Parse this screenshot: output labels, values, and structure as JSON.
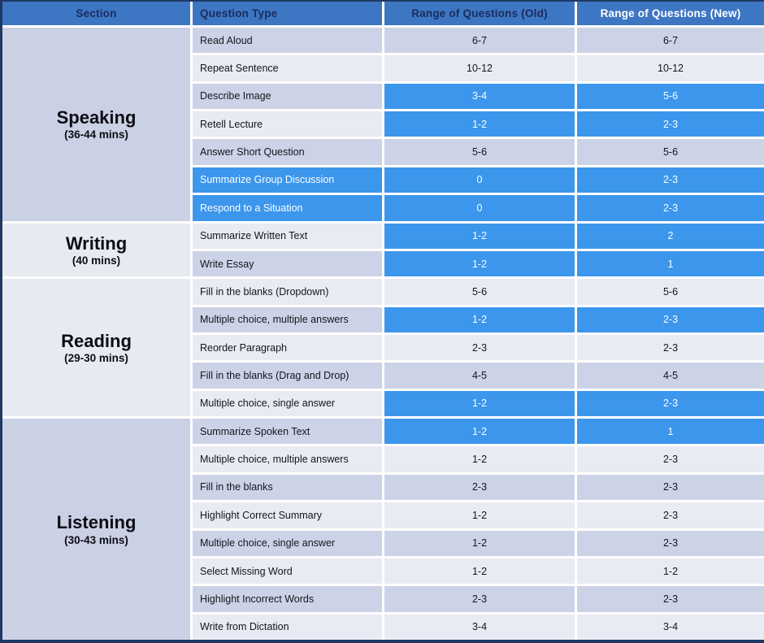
{
  "table": {
    "columns": [
      "Section",
      "Question Type",
      "Range of Questions (Old)",
      "Range of Questions (New)"
    ],
    "colors": {
      "header_bg": "#3D76C2",
      "header_text_dark": "#1B2C5E",
      "header_text_light": "#FFFFFF",
      "highlight_blue": "#3B96EC",
      "row_dark": "#CDD3E6",
      "row_light": "#E9EBF4",
      "section_dark": "#CBD1E4",
      "section_light": "#E8EAF2",
      "outer_border": "#1F3864",
      "body_text": "#14141C"
    },
    "sections": [
      {
        "name": "Speaking",
        "duration": "(36-44 mins)",
        "shade": "dark",
        "rows": [
          {
            "type": "Read Aloud",
            "old": "6-7",
            "new": "6-7",
            "shade": "dark",
            "highlight": "none"
          },
          {
            "type": "Repeat Sentence",
            "old": "10-12",
            "new": "10-12",
            "shade": "light",
            "highlight": "none"
          },
          {
            "type": "Describe Image",
            "old": "3-4",
            "new": "5-6",
            "shade": "dark",
            "highlight": "values"
          },
          {
            "type": "Retell Lecture",
            "old": "1-2",
            "new": "2-3",
            "shade": "light",
            "highlight": "values"
          },
          {
            "type": "Answer Short Question",
            "old": "5-6",
            "new": "5-6",
            "shade": "dark",
            "highlight": "none"
          },
          {
            "type": "Summarize Group Discussion",
            "old": "0",
            "new": "2-3",
            "shade": "dark",
            "highlight": "full"
          },
          {
            "type": "Respond to a Situation",
            "old": "0",
            "new": "2-3",
            "shade": "dark",
            "highlight": "full"
          }
        ]
      },
      {
        "name": "Writing",
        "duration": "(40 mins)",
        "shade": "light",
        "rows": [
          {
            "type": "Summarize Written Text",
            "old": "1-2",
            "new": "2",
            "shade": "light",
            "highlight": "values"
          },
          {
            "type": "Write Essay",
            "old": "1-2",
            "new": "1",
            "shade": "dark",
            "highlight": "values"
          }
        ]
      },
      {
        "name": "Reading",
        "duration": "(29-30 mins)",
        "shade": "light",
        "rows": [
          {
            "type": "Fill in the blanks (Dropdown)",
            "old": "5-6",
            "new": "5-6",
            "shade": "light",
            "highlight": "none"
          },
          {
            "type": "Multiple choice, multiple answers",
            "old": "1-2",
            "new": "2-3",
            "shade": "dark",
            "highlight": "values"
          },
          {
            "type": "Reorder Paragraph",
            "old": "2-3",
            "new": "2-3",
            "shade": "light",
            "highlight": "none"
          },
          {
            "type": "Fill in the blanks (Drag and Drop)",
            "old": "4-5",
            "new": "4-5",
            "shade": "dark",
            "highlight": "none"
          },
          {
            "type": "Multiple choice, single answer",
            "old": "1-2",
            "new": "2-3",
            "shade": "light",
            "highlight": "values"
          }
        ]
      },
      {
        "name": "Listening",
        "duration": "(30-43 mins)",
        "shade": "dark",
        "rows": [
          {
            "type": "Summarize Spoken Text",
            "old": "1-2",
            "new": "1",
            "shade": "dark",
            "highlight": "values"
          },
          {
            "type": "Multiple choice, multiple answers",
            "old": "1-2",
            "new": "2-3",
            "shade": "light",
            "highlight": "none"
          },
          {
            "type": "Fill in the blanks",
            "old": "2-3",
            "new": "2-3",
            "shade": "dark",
            "highlight": "none"
          },
          {
            "type": "Highlight Correct Summary",
            "old": "1-2",
            "new": "2-3",
            "shade": "light",
            "highlight": "none"
          },
          {
            "type": "Multiple choice, single answer",
            "old": "1-2",
            "new": "2-3",
            "shade": "dark",
            "highlight": "none"
          },
          {
            "type": "Select Missing Word",
            "old": "1-2",
            "new": "1-2",
            "shade": "light",
            "highlight": "none"
          },
          {
            "type": "Highlight Incorrect Words",
            "old": "2-3",
            "new": "2-3",
            "shade": "dark",
            "highlight": "none"
          },
          {
            "type": "Write from Dictation",
            "old": "3-4",
            "new": "3-4",
            "shade": "light",
            "highlight": "none"
          }
        ]
      }
    ]
  },
  "chart_data": {
    "type": "table",
    "title": "",
    "columns": [
      "Section",
      "Question Type",
      "Range of Questions (Old)",
      "Range of Questions (New)"
    ],
    "rows": [
      [
        "Speaking (36-44 mins)",
        "Read Aloud",
        "6-7",
        "6-7"
      ],
      [
        "Speaking (36-44 mins)",
        "Repeat Sentence",
        "10-12",
        "10-12"
      ],
      [
        "Speaking (36-44 mins)",
        "Describe Image",
        "3-4",
        "5-6"
      ],
      [
        "Speaking (36-44 mins)",
        "Retell Lecture",
        "1-2",
        "2-3"
      ],
      [
        "Speaking (36-44 mins)",
        "Answer Short Question",
        "5-6",
        "5-6"
      ],
      [
        "Speaking (36-44 mins)",
        "Summarize Group Discussion",
        "0",
        "2-3"
      ],
      [
        "Speaking (36-44 mins)",
        "Respond to a Situation",
        "0",
        "2-3"
      ],
      [
        "Writing (40 mins)",
        "Summarize Written Text",
        "1-2",
        "2"
      ],
      [
        "Writing (40 mins)",
        "Write Essay",
        "1-2",
        "1"
      ],
      [
        "Reading (29-30 mins)",
        "Fill in the blanks (Dropdown)",
        "5-6",
        "5-6"
      ],
      [
        "Reading (29-30 mins)",
        "Multiple choice, multiple answers",
        "1-2",
        "2-3"
      ],
      [
        "Reading (29-30 mins)",
        "Reorder Paragraph",
        "2-3",
        "2-3"
      ],
      [
        "Reading (29-30 mins)",
        "Fill in the blanks (Drag and Drop)",
        "4-5",
        "4-5"
      ],
      [
        "Reading (29-30 mins)",
        "Multiple choice, single answer",
        "1-2",
        "2-3"
      ],
      [
        "Listening (30-43 mins)",
        "Summarize Spoken Text",
        "1-2",
        "1"
      ],
      [
        "Listening (30-43 mins)",
        "Multiple choice, multiple answers",
        "1-2",
        "2-3"
      ],
      [
        "Listening (30-43 mins)",
        "Fill in the blanks",
        "2-3",
        "2-3"
      ],
      [
        "Listening (30-43 mins)",
        "Highlight Correct Summary",
        "1-2",
        "2-3"
      ],
      [
        "Listening (30-43 mins)",
        "Multiple choice, single answer",
        "1-2",
        "2-3"
      ],
      [
        "Listening (30-43 mins)",
        "Select Missing Word",
        "1-2",
        "1-2"
      ],
      [
        "Listening (30-43 mins)",
        "Highlight Incorrect Words",
        "2-3",
        "2-3"
      ],
      [
        "Listening (30-43 mins)",
        "Write from Dictation",
        "3-4",
        "3-4"
      ]
    ]
  }
}
